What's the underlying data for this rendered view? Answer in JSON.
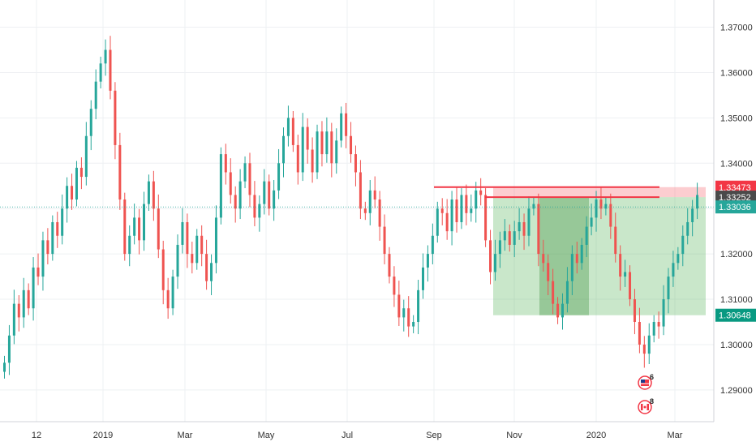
{
  "chart_data": {
    "type": "candlestick",
    "y_axis": {
      "min": 1.283,
      "max": 1.376,
      "ticks": [
        "1.29000",
        "1.30000",
        "1.31000",
        "1.32000",
        "1.33000",
        "1.34000",
        "1.35000",
        "1.36000",
        "1.37000"
      ]
    },
    "x_axis": {
      "labels": [
        "12",
        "2019",
        "Mar",
        "May",
        "Jul",
        "Sep",
        "Nov",
        "2020",
        "Mar"
      ]
    },
    "grid": true,
    "candle_colors": {
      "up": "#26a69a",
      "down": "#ef5350"
    },
    "series_close": [
      1.296,
      1.302,
      1.309,
      1.306,
      1.312,
      1.308,
      1.317,
      1.315,
      1.323,
      1.32,
      1.327,
      1.324,
      1.33,
      1.335,
      1.332,
      1.339,
      1.337,
      1.346,
      1.352,
      1.358,
      1.362,
      1.365,
      1.356,
      1.344,
      1.332,
      1.32,
      1.324,
      1.328,
      1.323,
      1.331,
      1.336,
      1.33,
      1.321,
      1.312,
      1.308,
      1.315,
      1.322,
      1.327,
      1.32,
      1.318,
      1.324,
      1.32,
      1.314,
      1.318,
      1.328,
      1.342,
      1.338,
      1.333,
      1.33,
      1.336,
      1.34,
      1.333,
      1.328,
      1.331,
      1.336,
      1.33,
      1.334,
      1.34,
      1.346,
      1.35,
      1.344,
      1.338,
      1.348,
      1.343,
      1.338,
      1.347,
      1.342,
      1.347,
      1.34,
      1.345,
      1.351,
      1.346,
      1.342,
      1.338,
      1.33,
      1.329,
      1.334,
      1.332,
      1.326,
      1.32,
      1.315,
      1.311,
      1.306,
      1.308,
      1.304,
      1.305,
      1.312,
      1.317,
      1.32,
      1.324,
      1.33,
      1.329,
      1.325,
      1.332,
      1.327,
      1.333,
      1.329,
      1.33,
      1.334,
      1.333,
      1.323,
      1.316,
      1.32,
      1.323,
      1.325,
      1.322,
      1.325,
      1.327,
      1.324,
      1.33,
      1.331,
      1.32,
      1.318,
      1.314,
      1.309,
      1.306,
      1.309,
      1.314,
      1.32,
      1.318,
      1.322,
      1.326,
      1.328,
      1.332,
      1.33,
      1.331,
      1.326,
      1.32,
      1.315,
      1.316,
      1.31,
      1.305,
      1.3,
      1.298,
      1.302,
      1.305,
      1.304,
      1.31,
      1.315,
      1.318,
      1.32,
      1.324,
      1.327,
      1.33,
      1.333
    ],
    "horizontal_lines": [
      {
        "value": 1.33473,
        "color": "#f23645",
        "start_x_fraction_of_series": 0.66
      },
      {
        "value": 1.33252,
        "color": "#f23645",
        "start_x_fraction_of_series": 0.74
      }
    ],
    "position_zones": {
      "entry": 1.33252,
      "stop": 1.33473,
      "target": 1.30648,
      "stop_color": "rgba(242,54,69,0.25)",
      "target_color": "rgba(76,175,80,0.30)",
      "highlight_color": "rgba(56,142,60,0.35)"
    },
    "current_price_line": 1.33036,
    "price_tags": [
      {
        "label": "1.33473",
        "value": 1.33473,
        "bg": "#f23645"
      },
      {
        "label": "1.33252",
        "value": 1.33252,
        "bg": "#4a4a4a"
      },
      {
        "label": "1.33036",
        "value": 1.33036,
        "bg": "#26a69a"
      },
      {
        "label": "1.30648",
        "value": 1.30648,
        "bg": "#089981"
      }
    ],
    "event_badges": [
      {
        "count": "6",
        "type": "us-flag"
      },
      {
        "count": "8",
        "type": "ca-flag"
      }
    ]
  }
}
